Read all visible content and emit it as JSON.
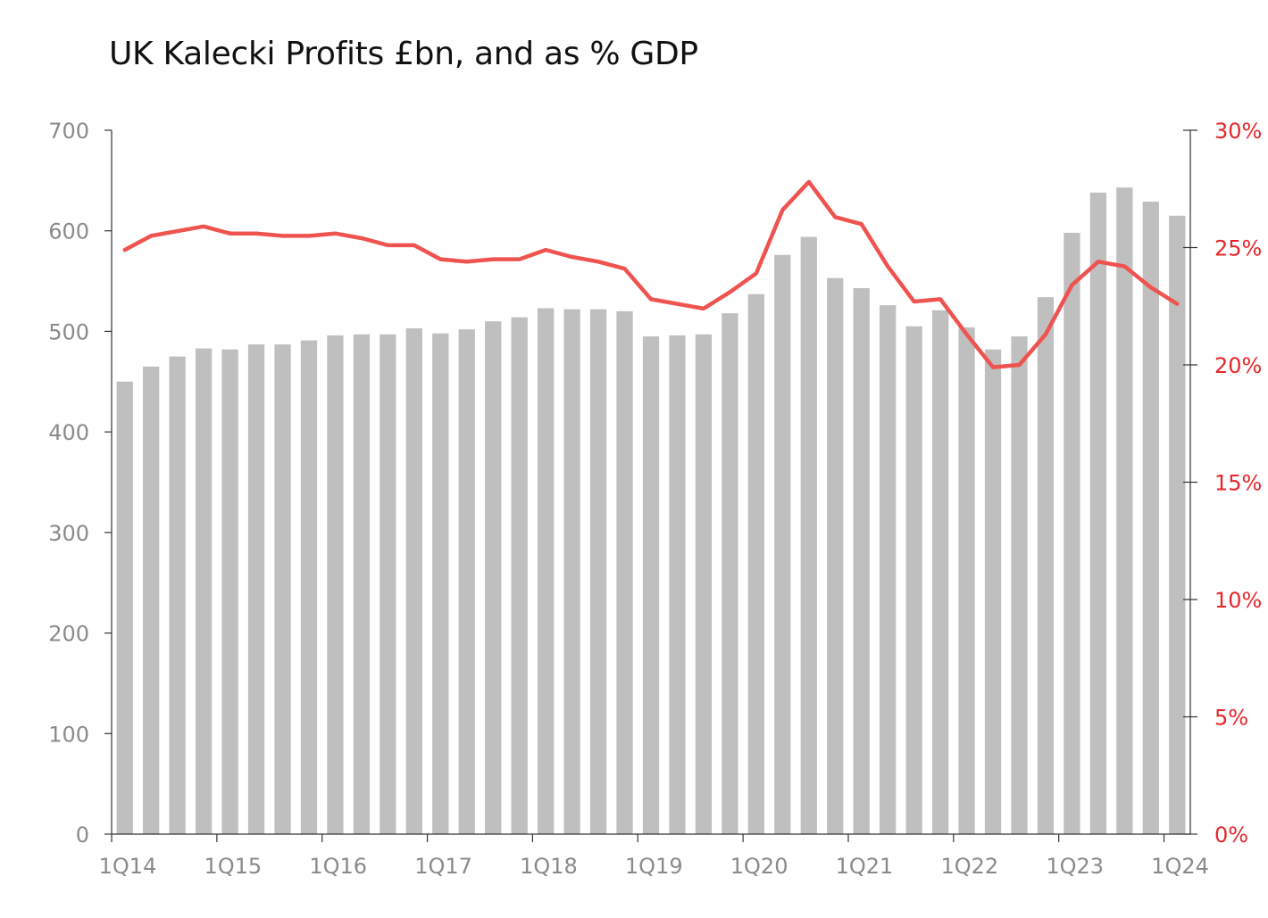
{
  "chart_data": {
    "type": "bar",
    "title": "UK Kalecki Profits £bn, and as % GDP",
    "x_tick_labels": [
      "1Q14",
      "1Q15",
      "1Q16",
      "1Q17",
      "1Q18",
      "1Q19",
      "1Q20",
      "1Q21",
      "1Q22",
      "1Q23",
      "1Q24"
    ],
    "y_left_ticks": [
      "0",
      "100",
      "200",
      "300",
      "400",
      "500",
      "600",
      "700"
    ],
    "y_right_ticks": [
      "0%",
      "5%",
      "10%",
      "15%",
      "20%",
      "25%",
      "30%"
    ],
    "ylim_left": [
      0,
      700
    ],
    "ylim_right": [
      0,
      30
    ],
    "grid": false,
    "legend": "none",
    "x": [
      "1Q14",
      "2Q14",
      "3Q14",
      "4Q14",
      "1Q15",
      "2Q15",
      "3Q15",
      "4Q15",
      "1Q16",
      "2Q16",
      "3Q16",
      "4Q16",
      "1Q17",
      "2Q17",
      "3Q17",
      "4Q17",
      "1Q18",
      "2Q18",
      "3Q18",
      "4Q18",
      "1Q19",
      "2Q19",
      "3Q19",
      "4Q19",
      "1Q20",
      "2Q20",
      "3Q20",
      "4Q20",
      "1Q21",
      "2Q21",
      "3Q21",
      "4Q21",
      "1Q22",
      "2Q22",
      "3Q22",
      "4Q22",
      "1Q23",
      "2Q23",
      "3Q23",
      "4Q23",
      "1Q24"
    ],
    "series": [
      {
        "type": "bar",
        "axis": "left",
        "color": "#bfbfbf",
        "values": [
          450,
          465,
          475,
          483,
          482,
          487,
          487,
          491,
          496,
          497,
          497,
          503,
          498,
          502,
          510,
          514,
          523,
          522,
          522,
          520,
          495,
          496,
          497,
          518,
          537,
          576,
          594,
          553,
          543,
          526,
          505,
          521,
          504,
          482,
          495,
          534,
          598,
          638,
          643,
          629,
          615
        ]
      },
      {
        "type": "line",
        "axis": "right",
        "color": "#ef5350",
        "values": [
          24.9,
          25.5,
          25.7,
          25.9,
          25.6,
          25.6,
          25.5,
          25.5,
          25.6,
          25.4,
          25.1,
          25.1,
          24.5,
          24.4,
          24.5,
          24.5,
          24.9,
          24.6,
          24.4,
          24.1,
          22.8,
          22.6,
          22.4,
          23.1,
          23.9,
          26.6,
          27.8,
          26.3,
          26.0,
          24.2,
          22.7,
          22.8,
          21.3,
          19.9,
          20.0,
          21.3,
          23.4,
          24.4,
          24.2,
          23.3,
          22.6
        ]
      }
    ]
  }
}
